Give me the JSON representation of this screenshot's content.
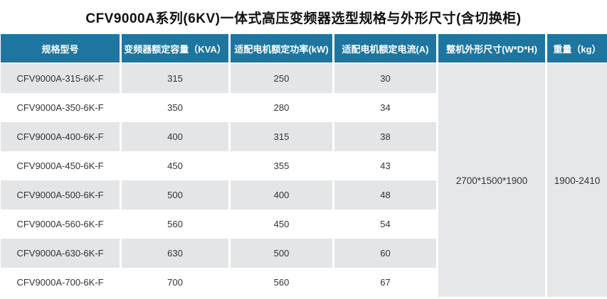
{
  "title": "CFV9000A系列(6KV)一体式高压变频器选型规格与外形尺寸(含切换柜)",
  "colors": {
    "header_bg": "#1e76a0",
    "header_text": "#ffffff",
    "stripe_bg": "#e4e5e7",
    "merged_bg": "#e6e7e9",
    "body_text": "#333333"
  },
  "table": {
    "headers": [
      "规格型号",
      "变频器额定容量（KVA）",
      "适配电机额定功率(kW)",
      "适配电机额定电流(A)",
      "整机外形尺寸(W*D*H)",
      "重量（kg）"
    ],
    "rows": [
      {
        "model": "CFV9000A-315-6K-F",
        "capacity_kva": "315",
        "power_kw": "250",
        "current_a": "30"
      },
      {
        "model": "CFV9000A-350-6K-F",
        "capacity_kva": "350",
        "power_kw": "280",
        "current_a": "34"
      },
      {
        "model": "CFV9000A-400-6K-F",
        "capacity_kva": "400",
        "power_kw": "315",
        "current_a": "38"
      },
      {
        "model": "CFV9000A-450-6K-F",
        "capacity_kva": "450",
        "power_kw": "355",
        "current_a": "43"
      },
      {
        "model": "CFV9000A-500-6K-F",
        "capacity_kva": "500",
        "power_kw": "400",
        "current_a": "48"
      },
      {
        "model": "CFV9000A-560-6K-F",
        "capacity_kva": "560",
        "power_kw": "450",
        "current_a": "54"
      },
      {
        "model": "CFV9000A-630-6K-F",
        "capacity_kva": "630",
        "power_kw": "500",
        "current_a": "60"
      },
      {
        "model": "CFV9000A-700-6K-F",
        "capacity_kva": "700",
        "power_kw": "560",
        "current_a": "67"
      }
    ],
    "merged": {
      "dimensions": "2700*1500*1900",
      "weight": "1900-2410"
    }
  }
}
